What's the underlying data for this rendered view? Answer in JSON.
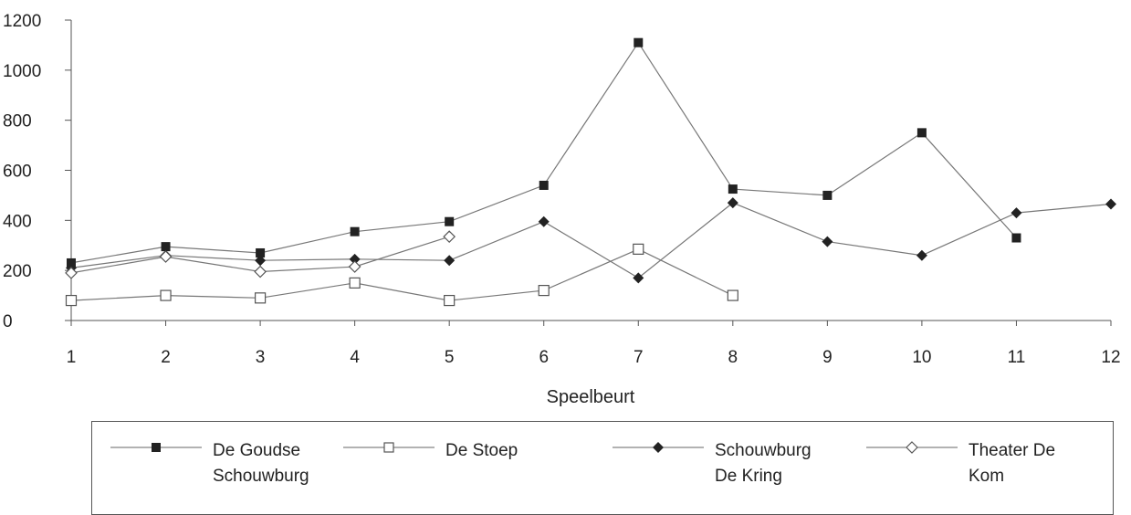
{
  "chart_data": {
    "type": "line",
    "xlabel": "Speelbeurt",
    "ylabel": "",
    "x": [
      1,
      2,
      3,
      4,
      5,
      6,
      7,
      8,
      9,
      10,
      11,
      12
    ],
    "xlim": [
      1,
      12
    ],
    "ylim": [
      0,
      1200
    ],
    "yticks": [
      0,
      200,
      400,
      600,
      800,
      1000,
      1200
    ],
    "grid": false,
    "legend_position": "bottom",
    "series": [
      {
        "name": "De Goudse Schouwburg",
        "marker": "filled-square",
        "values": [
          230,
          295,
          270,
          355,
          395,
          540,
          1110,
          525,
          500,
          750,
          330,
          null
        ]
      },
      {
        "name": "De Stoep",
        "marker": "open-square",
        "values": [
          80,
          100,
          90,
          150,
          80,
          120,
          285,
          100,
          null,
          null,
          null,
          null
        ]
      },
      {
        "name": "Schouwburg De Kring",
        "marker": "filled-diamond",
        "values": [
          210,
          260,
          240,
          245,
          240,
          395,
          170,
          470,
          315,
          260,
          430,
          465
        ]
      },
      {
        "name": "Theater De Kom",
        "marker": "open-diamond",
        "values": [
          190,
          255,
          195,
          215,
          335,
          null,
          null,
          null,
          null,
          null,
          null,
          null
        ]
      }
    ]
  },
  "legend": {
    "items": [
      {
        "line1": "De Goudse",
        "line2": "Schouwburg"
      },
      {
        "line1": "De Stoep",
        "line2": ""
      },
      {
        "line1": "Schouwburg",
        "line2": "De Kring"
      },
      {
        "line1": "Theater De",
        "line2": "Kom"
      }
    ]
  }
}
